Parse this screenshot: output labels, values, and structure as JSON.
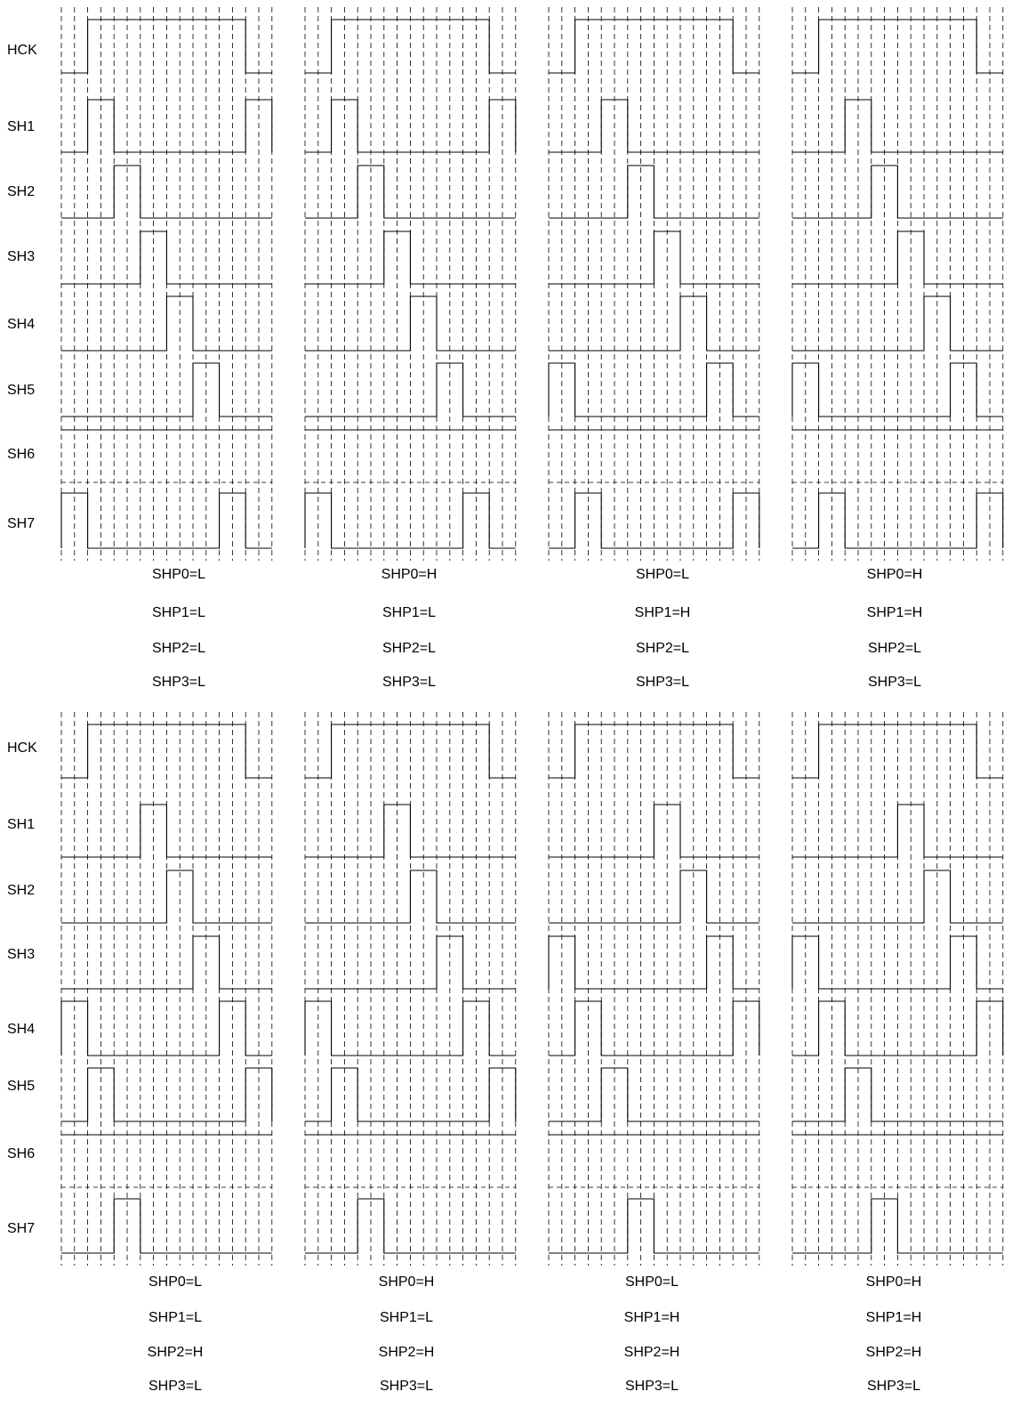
{
  "signals": [
    "HCK",
    "SH1",
    "SH2",
    "SH3",
    "SH4",
    "SH5",
    "SH6",
    "SH7"
  ],
  "pulse_width_units": 1,
  "hck_high_interval_units": [
    1,
    7
  ],
  "panel_width_units": 8,
  "blocks": [
    {
      "panels": [
        {
          "pulses": {
            "SH1": [
              1,
              7
            ],
            "SH2": [
              2
            ],
            "SH3": [
              3
            ],
            "SH4": [
              4
            ],
            "SH5": [
              5
            ],
            "SH6": [],
            "SH7": [
              0,
              6
            ]
          },
          "settings": [
            "SHP0=L",
            "SHP1=L",
            "SHP2=L",
            "SHP3=L"
          ]
        },
        {
          "pulses": {
            "SH1": [
              1,
              7
            ],
            "SH2": [
              2
            ],
            "SH3": [
              3
            ],
            "SH4": [
              4
            ],
            "SH5": [
              -1,
              5
            ],
            "SH6": [],
            "SH7": [
              0,
              6
            ]
          },
          "settings": [
            "SHP0=H",
            "SHP1=L",
            "SHP2=L",
            "SHP3=L"
          ]
        },
        {
          "pulses": {
            "SH1": [
              2
            ],
            "SH2": [
              3
            ],
            "SH3": [
              4
            ],
            "SH4": [
              -1,
              5
            ],
            "SH5": [
              0,
              6
            ],
            "SH6": [],
            "SH7": [
              1,
              7
            ]
          },
          "settings": [
            "SHP0=L",
            "SHP1=H",
            "SHP2=L",
            "SHP3=L"
          ]
        },
        {
          "pulses": {
            "SH1": [
              2
            ],
            "SH2": [
              3
            ],
            "SH3": [
              4
            ],
            "SH4": [
              -1,
              5
            ],
            "SH5": [
              0,
              6
            ],
            "SH6": [],
            "SH7": [
              1,
              7
            ]
          },
          "settings": [
            "SHP0=H",
            "SHP1=H",
            "SHP2=L",
            "SHP3=L"
          ]
        }
      ]
    },
    {
      "panels": [
        {
          "pulses": {
            "SH1": [
              3
            ],
            "SH2": [
              4
            ],
            "SH3": [
              -1,
              5
            ],
            "SH4": [
              0,
              6
            ],
            "SH5": [
              1,
              7
            ],
            "SH6": [],
            "SH7": [
              2
            ]
          },
          "settings": [
            "SHP0=L",
            "SHP1=L",
            "SHP2=H",
            "SHP3=L"
          ]
        },
        {
          "pulses": {
            "SH1": [
              3
            ],
            "SH2": [
              4
            ],
            "SH3": [
              -1,
              5
            ],
            "SH4": [
              0,
              6
            ],
            "SH5": [
              1,
              7
            ],
            "SH6": [],
            "SH7": [
              2
            ]
          },
          "settings": [
            "SHP0=H",
            "SHP1=L",
            "SHP2=H",
            "SHP3=L"
          ]
        },
        {
          "pulses": {
            "SH1": [
              4
            ],
            "SH2": [
              -1,
              5
            ],
            "SH3": [
              0,
              6
            ],
            "SH4": [
              1,
              7
            ],
            "SH5": [
              2
            ],
            "SH6": [],
            "SH7": [
              3
            ]
          },
          "settings": [
            "SHP0=L",
            "SHP1=H",
            "SHP2=H",
            "SHP3=L"
          ]
        },
        {
          "pulses": {
            "SH1": [
              4
            ],
            "SH2": [
              -1,
              5
            ],
            "SH3": [
              0,
              6
            ],
            "SH4": [
              1,
              7
            ],
            "SH5": [
              2
            ],
            "SH6": [],
            "SH7": [
              3
            ]
          },
          "settings": [
            "SHP0=H",
            "SHP1=H",
            "SHP2=H",
            "SHP3=L"
          ]
        }
      ]
    }
  ]
}
